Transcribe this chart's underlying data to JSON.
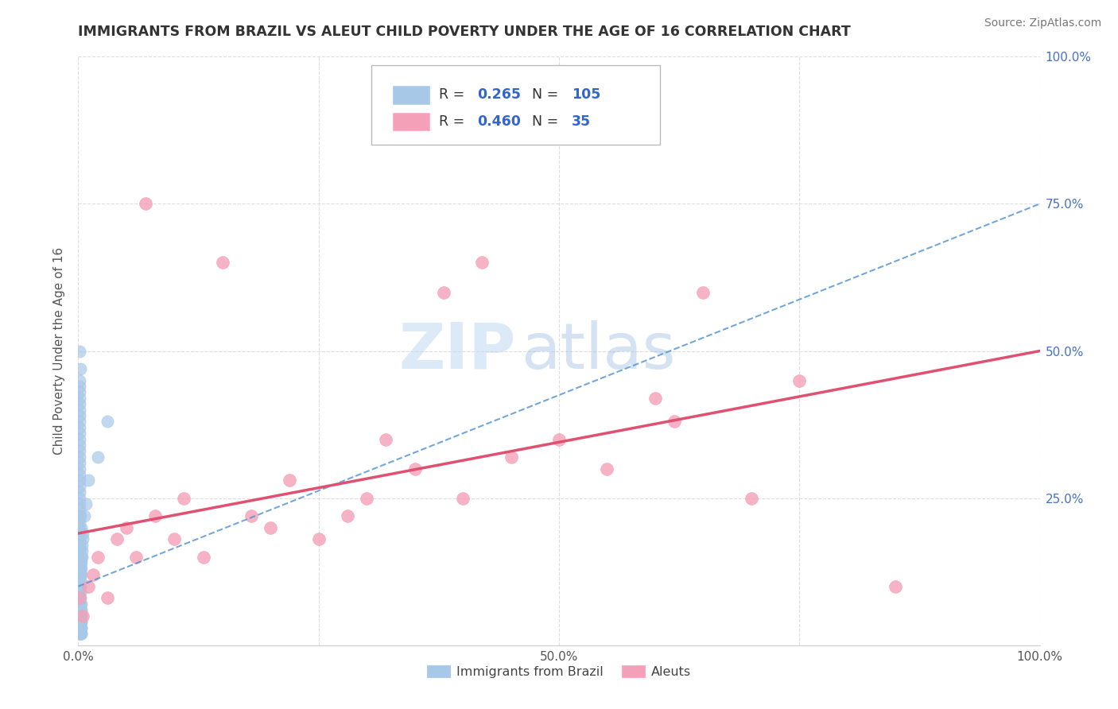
{
  "title": "IMMIGRANTS FROM BRAZIL VS ALEUT CHILD POVERTY UNDER THE AGE OF 16 CORRELATION CHART",
  "source": "Source: ZipAtlas.com",
  "ylabel": "Child Poverty Under the Age of 16",
  "xlim": [
    0,
    1.0
  ],
  "ylim": [
    0,
    1.0
  ],
  "xticks": [
    0.0,
    0.25,
    0.5,
    0.75,
    1.0
  ],
  "xticklabels": [
    "0.0%",
    "",
    "50.0%",
    "",
    "100.0%"
  ],
  "yticks": [
    0.0,
    0.25,
    0.5,
    0.75,
    1.0
  ],
  "yticklabels_right": [
    "",
    "25.0%",
    "50.0%",
    "75.0%",
    "100.0%"
  ],
  "brazil_color": "#a8c8e8",
  "aleut_color": "#f4a0b8",
  "brazil_line_color": "#5090d0",
  "aleut_line_color": "#e05070",
  "legend_brazil_R": "0.265",
  "legend_brazil_N": "105",
  "legend_aleut_R": "0.460",
  "legend_aleut_N": "35",
  "watermark_zip": "ZIP",
  "watermark_atlas": "atlas",
  "brazil_x": [
    0.001,
    0.002,
    0.001,
    0.003,
    0.001,
    0.002,
    0.001,
    0.002,
    0.001,
    0.003,
    0.001,
    0.002,
    0.001,
    0.002,
    0.003,
    0.001,
    0.002,
    0.001,
    0.002,
    0.001,
    0.002,
    0.001,
    0.002,
    0.001,
    0.003,
    0.001,
    0.002,
    0.001,
    0.002,
    0.003,
    0.001,
    0.002,
    0.001,
    0.002,
    0.001,
    0.003,
    0.001,
    0.002,
    0.001,
    0.002,
    0.001,
    0.002,
    0.001,
    0.002,
    0.001,
    0.002,
    0.003,
    0.001,
    0.002,
    0.001,
    0.002,
    0.001,
    0.002,
    0.001,
    0.002,
    0.001,
    0.003,
    0.001,
    0.002,
    0.001,
    0.002,
    0.001,
    0.002,
    0.001,
    0.002,
    0.001,
    0.003,
    0.001,
    0.002,
    0.001,
    0.004,
    0.002,
    0.001,
    0.003,
    0.001,
    0.005,
    0.002,
    0.001,
    0.003,
    0.001,
    0.006,
    0.002,
    0.001,
    0.004,
    0.002,
    0.001,
    0.003,
    0.01,
    0.002,
    0.001,
    0.005,
    0.002,
    0.001,
    0.008,
    0.003,
    0.001,
    0.02,
    0.004,
    0.002,
    0.03,
    0.002,
    0.001,
    0.003,
    0.002,
    0.001
  ],
  "brazil_y": [
    0.02,
    0.03,
    0.04,
    0.02,
    0.05,
    0.03,
    0.06,
    0.02,
    0.07,
    0.03,
    0.08,
    0.02,
    0.09,
    0.04,
    0.03,
    0.1,
    0.05,
    0.11,
    0.03,
    0.12,
    0.06,
    0.13,
    0.02,
    0.14,
    0.04,
    0.15,
    0.03,
    0.16,
    0.05,
    0.02,
    0.17,
    0.04,
    0.18,
    0.03,
    0.19,
    0.05,
    0.2,
    0.06,
    0.21,
    0.04,
    0.02,
    0.07,
    0.22,
    0.03,
    0.23,
    0.05,
    0.04,
    0.24,
    0.03,
    0.25,
    0.04,
    0.26,
    0.05,
    0.27,
    0.03,
    0.28,
    0.06,
    0.29,
    0.04,
    0.3,
    0.05,
    0.31,
    0.03,
    0.32,
    0.04,
    0.33,
    0.07,
    0.34,
    0.05,
    0.35,
    0.15,
    0.08,
    0.36,
    0.12,
    0.37,
    0.18,
    0.09,
    0.38,
    0.14,
    0.39,
    0.22,
    0.1,
    0.4,
    0.16,
    0.11,
    0.41,
    0.13,
    0.28,
    0.12,
    0.42,
    0.19,
    0.13,
    0.43,
    0.24,
    0.15,
    0.44,
    0.32,
    0.17,
    0.14,
    0.38,
    0.47,
    0.45,
    0.2,
    0.22,
    0.5
  ],
  "aleut_x": [
    0.001,
    0.005,
    0.01,
    0.015,
    0.02,
    0.03,
    0.04,
    0.05,
    0.06,
    0.07,
    0.08,
    0.1,
    0.11,
    0.13,
    0.15,
    0.18,
    0.2,
    0.22,
    0.25,
    0.28,
    0.3,
    0.32,
    0.35,
    0.38,
    0.4,
    0.42,
    0.45,
    0.5,
    0.55,
    0.6,
    0.62,
    0.65,
    0.7,
    0.75,
    0.85
  ],
  "aleut_y": [
    0.08,
    0.05,
    0.1,
    0.12,
    0.15,
    0.08,
    0.18,
    0.2,
    0.15,
    0.75,
    0.22,
    0.18,
    0.25,
    0.15,
    0.65,
    0.22,
    0.2,
    0.28,
    0.18,
    0.22,
    0.25,
    0.35,
    0.3,
    0.6,
    0.25,
    0.65,
    0.32,
    0.35,
    0.3,
    0.42,
    0.38,
    0.6,
    0.25,
    0.45,
    0.1
  ],
  "brazil_trend_x": [
    0.0,
    1.0
  ],
  "brazil_trend_y": [
    0.1,
    0.75
  ],
  "aleut_trend_x": [
    0.0,
    1.0
  ],
  "aleut_trend_y": [
    0.19,
    0.5
  ]
}
